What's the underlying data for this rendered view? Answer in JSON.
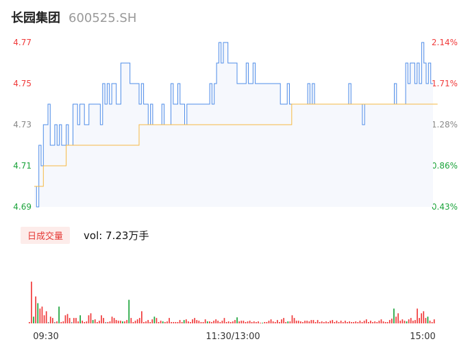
{
  "header": {
    "name": "长园集团",
    "code": "600525.SH"
  },
  "volume_panel": {
    "badge": "日成交量",
    "vol_text": "vol: 7.23万手"
  },
  "colors": {
    "price_line": "#4e8ce8",
    "avg_line": "#f5b942",
    "up": "#f03a3a",
    "down": "#1aa33a",
    "neutral": "#888888",
    "area_fill": "#f6f8fd"
  },
  "chart_data": [
    {
      "type": "line",
      "title": "",
      "x_ticks": [
        "09:30",
        "11:30/13:00",
        "15:00"
      ],
      "ylim": [
        4.69,
        4.77
      ],
      "left_axis_ticks": [
        {
          "label": "4.77",
          "value": 4.77,
          "color": "up"
        },
        {
          "label": "4.75",
          "value": 4.75,
          "color": "up"
        },
        {
          "label": "4.73",
          "value": 4.73,
          "color": "neutral"
        },
        {
          "label": "4.71",
          "value": 4.71,
          "color": "down"
        },
        {
          "label": "4.69",
          "value": 4.69,
          "color": "down"
        }
      ],
      "right_axis_ticks": [
        {
          "label": "2.14%",
          "value": 4.77,
          "color": "up"
        },
        {
          "label": "1.71%",
          "value": 4.75,
          "color": "up"
        },
        {
          "label": "1.28%",
          "value": 4.73,
          "color": "neutral"
        },
        {
          "label": "0.86%",
          "value": 4.71,
          "color": "down"
        },
        {
          "label": "0.43%",
          "value": 4.69,
          "color": "down"
        }
      ],
      "series": [
        {
          "values": [
            4.7,
            4.69,
            4.72,
            4.71,
            4.73,
            4.73,
            4.74,
            4.72,
            4.72,
            4.73,
            4.72,
            4.73,
            4.72,
            4.72,
            4.73,
            4.72,
            4.72,
            4.74,
            4.74,
            4.73,
            4.74,
            4.74,
            4.73,
            4.73,
            4.74,
            4.74,
            4.74,
            4.74,
            4.74,
            4.73,
            4.75,
            4.74,
            4.75,
            4.74,
            4.75,
            4.75,
            4.74,
            4.74,
            4.76,
            4.76,
            4.76,
            4.76,
            4.75,
            4.75,
            4.75,
            4.75,
            4.74,
            4.75,
            4.74,
            4.74,
            4.73,
            4.74,
            4.73,
            4.73,
            4.73,
            4.73,
            4.74,
            4.73,
            4.73,
            4.73,
            4.75,
            4.74,
            4.74,
            4.75,
            4.74,
            4.74,
            4.73,
            4.74,
            4.74,
            4.74,
            4.74,
            4.74,
            4.74,
            4.74,
            4.74,
            4.74,
            4.74,
            4.75,
            4.74,
            4.75,
            4.76,
            4.77,
            4.76,
            4.77,
            4.77,
            4.76,
            4.76,
            4.76,
            4.76,
            4.75,
            4.75,
            4.75,
            4.75,
            4.76,
            4.75,
            4.75,
            4.76,
            4.75,
            4.75,
            4.75,
            4.75,
            4.75,
            4.75,
            4.75,
            4.75,
            4.75,
            4.75,
            4.75,
            4.74,
            4.74,
            4.74,
            4.75,
            4.74,
            4.74,
            4.74,
            4.74,
            4.74,
            4.74,
            4.74,
            4.74,
            4.75,
            4.74,
            4.75,
            4.74,
            4.74,
            4.74,
            4.74,
            4.74,
            4.74,
            4.74,
            4.74,
            4.74,
            4.74,
            4.74,
            4.74,
            4.74,
            4.74,
            4.74,
            4.75,
            4.74,
            4.74,
            4.74,
            4.74,
            4.74,
            4.73,
            4.74,
            4.74,
            4.74,
            4.74,
            4.74,
            4.74,
            4.74,
            4.74,
            4.74,
            4.74,
            4.74,
            4.74,
            4.74,
            4.75,
            4.74,
            4.74,
            4.74,
            4.74,
            4.76,
            4.75,
            4.76,
            4.76,
            4.75,
            4.76,
            4.75,
            4.77,
            4.76,
            4.75,
            4.76,
            4.75,
            4.75
          ]
        },
        {
          "values": [
            4.7,
            4.7,
            4.7,
            4.7,
            4.71,
            4.71,
            4.71,
            4.71,
            4.71,
            4.71,
            4.71,
            4.71,
            4.71,
            4.71,
            4.72,
            4.72,
            4.72,
            4.72,
            4.72,
            4.72,
            4.72,
            4.72,
            4.72,
            4.72,
            4.72,
            4.72,
            4.72,
            4.72,
            4.72,
            4.72,
            4.72,
            4.72,
            4.72,
            4.72,
            4.72,
            4.72,
            4.72,
            4.72,
            4.72,
            4.72,
            4.72,
            4.72,
            4.72,
            4.72,
            4.72,
            4.72,
            4.73,
            4.73,
            4.73,
            4.73,
            4.73,
            4.73,
            4.73,
            4.73,
            4.73,
            4.73,
            4.73,
            4.73,
            4.73,
            4.73,
            4.73,
            4.73,
            4.73,
            4.73,
            4.73,
            4.73,
            4.73,
            4.73,
            4.73,
            4.73,
            4.73,
            4.73,
            4.73,
            4.73,
            4.73,
            4.73,
            4.73,
            4.73,
            4.73,
            4.73,
            4.73,
            4.73,
            4.73,
            4.73,
            4.73,
            4.73,
            4.73,
            4.73,
            4.73,
            4.73,
            4.73,
            4.73,
            4.73,
            4.73,
            4.73,
            4.73,
            4.73,
            4.73,
            4.73,
            4.73,
            4.73,
            4.73,
            4.73,
            4.73,
            4.73,
            4.73,
            4.73,
            4.73,
            4.73,
            4.73,
            4.73,
            4.73,
            4.73,
            4.74,
            4.74,
            4.74,
            4.74,
            4.74,
            4.74,
            4.74,
            4.74,
            4.74,
            4.74,
            4.74,
            4.74,
            4.74,
            4.74,
            4.74,
            4.74,
            4.74,
            4.74,
            4.74,
            4.74,
            4.74,
            4.74,
            4.74,
            4.74,
            4.74,
            4.74,
            4.74,
            4.74,
            4.74,
            4.74,
            4.74,
            4.74,
            4.74,
            4.74,
            4.74,
            4.74,
            4.74,
            4.74,
            4.74,
            4.74,
            4.74,
            4.74,
            4.74,
            4.74,
            4.74,
            4.74,
            4.74,
            4.74,
            4.74,
            4.74,
            4.74,
            4.74,
            4.74,
            4.74,
            4.74,
            4.74,
            4.74,
            4.74,
            4.74,
            4.74,
            4.74,
            4.74,
            4.74,
            4.74,
            4.74
          ]
        }
      ]
    },
    {
      "type": "bar",
      "title": "",
      "ylim": [
        0,
        110
      ],
      "values": [
        2,
        62,
        10,
        40,
        30,
        22,
        25,
        12,
        18,
        2,
        10,
        8,
        2,
        3,
        25,
        2,
        3,
        12,
        14,
        8,
        2,
        8,
        8,
        3,
        12,
        4,
        2,
        3,
        12,
        15,
        5,
        6,
        2,
        4,
        12,
        8,
        2,
        2,
        3,
        10,
        8,
        5,
        4,
        4,
        3,
        3,
        5,
        35,
        8,
        2,
        4,
        6,
        8,
        18,
        2,
        3,
        5,
        2,
        6,
        10,
        8,
        2,
        4,
        3,
        2,
        3,
        8,
        2,
        2,
        2,
        2,
        5,
        2,
        5,
        6,
        3,
        2,
        6,
        8,
        5,
        4,
        2,
        2,
        6,
        3,
        3,
        2,
        4,
        6,
        4,
        2,
        4,
        8,
        2,
        3,
        2,
        3,
        5,
        9,
        3,
        4,
        4,
        2,
        3,
        4,
        2,
        3,
        2,
        3,
        1,
        1,
        2,
        2,
        4,
        6,
        3,
        2,
        5,
        2,
        6,
        8,
        2,
        3,
        3,
        12,
        8,
        4,
        4,
        3,
        2,
        4,
        4,
        3,
        5,
        5,
        2,
        5,
        2,
        3,
        2,
        3,
        2,
        4,
        5,
        2,
        4,
        2,
        4,
        2,
        4,
        2,
        3,
        2,
        2,
        3,
        2,
        4,
        2,
        4,
        6,
        2,
        4,
        2,
        3,
        2,
        4,
        6,
        3,
        2,
        2,
        5,
        7,
        22,
        10,
        15,
        4,
        6,
        4,
        3,
        6,
        8,
        4,
        5,
        22,
        8,
        15,
        18,
        8,
        10,
        4,
        2,
        6
      ],
      "colors": [
        "up",
        "up",
        "down",
        "up",
        "down",
        "up",
        "up",
        "up",
        "up",
        "neutral",
        "up",
        "up",
        "neutral",
        "up",
        "down",
        "up",
        "up",
        "up",
        "up",
        "up",
        "neutral",
        "up",
        "up",
        "up",
        "down",
        "up",
        "up",
        "up",
        "up",
        "up",
        "down",
        "up",
        "up",
        "up",
        "up",
        "up",
        "neutral",
        "up",
        "up",
        "up",
        "up",
        "up",
        "up",
        "up",
        "down",
        "up",
        "up",
        "down",
        "up",
        "up",
        "up",
        "up",
        "up",
        "up",
        "up",
        "up",
        "up",
        "up",
        "up",
        "down",
        "up",
        "up",
        "up",
        "down",
        "up",
        "up",
        "up",
        "up",
        "up",
        "up",
        "up",
        "up",
        "up",
        "down",
        "up",
        "up",
        "up",
        "up",
        "up",
        "up",
        "up",
        "up",
        "up",
        "up",
        "down",
        "up",
        "up",
        "up",
        "up",
        "up",
        "up",
        "up",
        "up",
        "up",
        "up",
        "up",
        "up",
        "up",
        "down",
        "up",
        "up",
        "up",
        "up",
        "up",
        "up",
        "up",
        "up",
        "up",
        "up",
        "up",
        "down",
        "up",
        "up",
        "up",
        "up",
        "up",
        "up",
        "up",
        "up",
        "up",
        "up",
        "up",
        "down",
        "up",
        "up",
        "up",
        "up",
        "up",
        "up",
        "up",
        "up",
        "up",
        "up",
        "up",
        "up",
        "up",
        "up",
        "up",
        "up",
        "up",
        "up",
        "up",
        "up",
        "up",
        "up",
        "up",
        "up",
        "up",
        "up",
        "up",
        "up",
        "up",
        "up",
        "up",
        "up",
        "up",
        "up",
        "up",
        "up",
        "up",
        "up",
        "up",
        "up",
        "up",
        "up",
        "up",
        "up",
        "up",
        "up",
        "up",
        "up",
        "up",
        "down",
        "up",
        "up",
        "up",
        "up",
        "up",
        "down",
        "up",
        "up",
        "up",
        "up",
        "up",
        "up",
        "up",
        "up",
        "up",
        "down",
        "up",
        "up",
        "up",
        "up",
        "up"
      ]
    }
  ]
}
